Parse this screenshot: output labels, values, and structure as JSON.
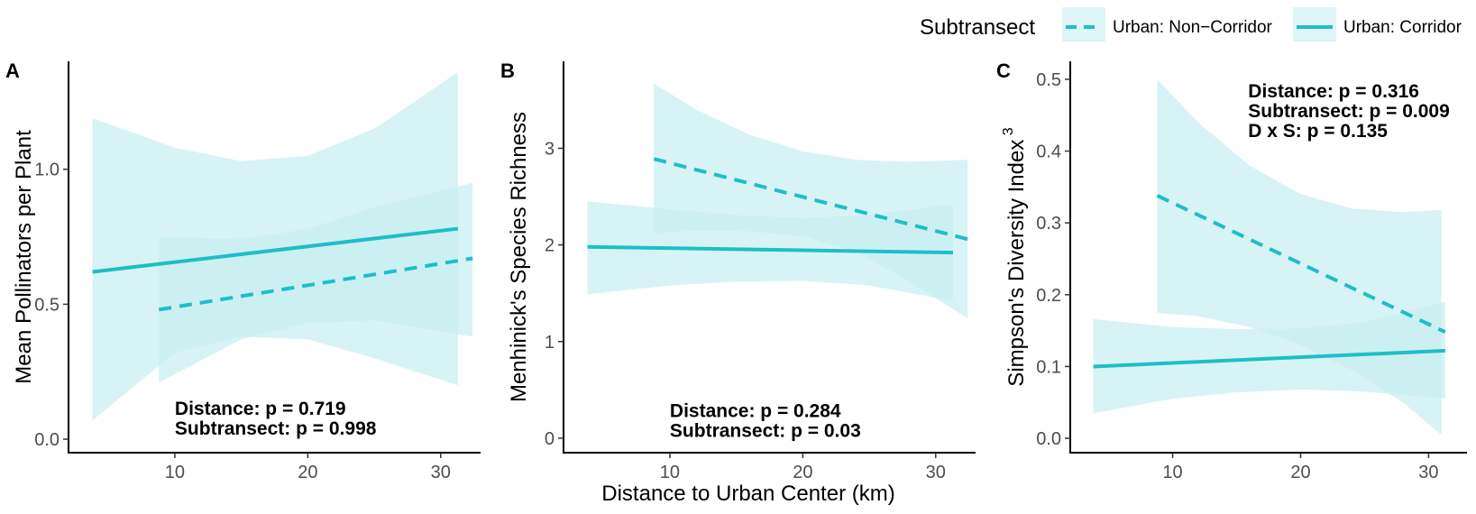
{
  "legend": {
    "title": "Subtransect",
    "items": [
      {
        "label": "Urban: Non−Corridor",
        "dash": true
      },
      {
        "label": "Urban: Corridor",
        "dash": false
      }
    ]
  },
  "colors": {
    "line": "#1ebec8",
    "ribbon": "#c8eef1"
  },
  "shared_xlabel": "Distance to Urban Center (km)",
  "chart_data": [
    {
      "type": "line",
      "panel": "A",
      "xlabel": "",
      "ylabel": "Mean Pollinators per Plant",
      "xlim": [
        2,
        33
      ],
      "ylim": [
        -0.05,
        1.4
      ],
      "xticks": [
        10,
        20,
        30
      ],
      "yticks": [
        0.0,
        0.5,
        1.0
      ],
      "ytick_labels": [
        "0.0",
        "0.5",
        "1.0"
      ],
      "annotations": [
        "Distance: p = 0.719",
        "Subtransect: p = 0.998"
      ],
      "annotation_anchor": [
        10.0,
        0.09
      ],
      "series": [
        {
          "name": "Urban: Corridor",
          "dash": false,
          "x": [
            3.8,
            31.3
          ],
          "y": [
            0.62,
            0.78
          ],
          "ribbon": [
            {
              "x": 3.8,
              "lo": 0.07,
              "hi": 1.19
            },
            {
              "x": 10,
              "lo": 0.32,
              "hi": 1.08
            },
            {
              "x": 15,
              "lo": 0.38,
              "hi": 1.03
            },
            {
              "x": 20,
              "lo": 0.37,
              "hi": 1.05
            },
            {
              "x": 25,
              "lo": 0.3,
              "hi": 1.15
            },
            {
              "x": 31.3,
              "lo": 0.2,
              "hi": 1.36
            }
          ]
        },
        {
          "name": "Urban: Non−Corridor",
          "dash": true,
          "x": [
            8.8,
            32.4
          ],
          "y": [
            0.48,
            0.67
          ],
          "ribbon": [
            {
              "x": 8.8,
              "lo": 0.21,
              "hi": 0.75
            },
            {
              "x": 15,
              "lo": 0.37,
              "hi": 0.74
            },
            {
              "x": 20,
              "lo": 0.43,
              "hi": 0.78
            },
            {
              "x": 25,
              "lo": 0.44,
              "hi": 0.86
            },
            {
              "x": 32.4,
              "lo": 0.38,
              "hi": 0.95
            }
          ]
        }
      ]
    },
    {
      "type": "line",
      "panel": "B",
      "xlabel": "",
      "ylabel": "Menhinick's Species Richness",
      "xlim": [
        2,
        33
      ],
      "ylim": [
        -0.15,
        3.9
      ],
      "xticks": [
        10,
        20,
        30
      ],
      "yticks": [
        0,
        1,
        2,
        3
      ],
      "ytick_labels": [
        "0",
        "1",
        "2",
        "3"
      ],
      "annotations": [
        "Distance: p = 0.284",
        "Subtransect: p = 0.03"
      ],
      "annotation_anchor": [
        10.0,
        0.22
      ],
      "series": [
        {
          "name": "Urban: Corridor",
          "dash": false,
          "x": [
            3.8,
            31.3
          ],
          "y": [
            1.98,
            1.92
          ],
          "ribbon": [
            {
              "x": 3.8,
              "lo": 1.49,
              "hi": 2.45
            },
            {
              "x": 10,
              "lo": 1.58,
              "hi": 2.37
            },
            {
              "x": 15,
              "lo": 1.62,
              "hi": 2.31
            },
            {
              "x": 20,
              "lo": 1.63,
              "hi": 2.28
            },
            {
              "x": 25,
              "lo": 1.58,
              "hi": 2.31
            },
            {
              "x": 31.3,
              "lo": 1.42,
              "hi": 2.42
            }
          ]
        },
        {
          "name": "Urban: Non−Corridor",
          "dash": true,
          "x": [
            8.8,
            32.4
          ],
          "y": [
            2.89,
            2.06
          ],
          "ribbon": [
            {
              "x": 8.8,
              "lo": 2.12,
              "hi": 3.67
            },
            {
              "x": 12,
              "lo": 2.15,
              "hi": 3.4
            },
            {
              "x": 16,
              "lo": 2.14,
              "hi": 3.14
            },
            {
              "x": 20,
              "lo": 2.09,
              "hi": 2.97
            },
            {
              "x": 24,
              "lo": 1.93,
              "hi": 2.88
            },
            {
              "x": 28,
              "lo": 1.62,
              "hi": 2.86
            },
            {
              "x": 32.4,
              "lo": 1.24,
              "hi": 2.88
            }
          ]
        }
      ]
    },
    {
      "type": "line",
      "panel": "C",
      "xlabel": "",
      "ylabel": "Simpson's Diversity Index",
      "ylabel_superscript": "3",
      "xlim": [
        2,
        33
      ],
      "ylim": [
        -0.02,
        0.525
      ],
      "xticks": [
        10,
        20,
        30
      ],
      "yticks": [
        0.0,
        0.1,
        0.2,
        0.3,
        0.4,
        0.5
      ],
      "ytick_labels": [
        "0.0",
        "0.1",
        "0.2",
        "0.3",
        "0.4",
        "0.5"
      ],
      "annotations": [
        "Distance: p = 0.316",
        "Subtransect: p = 0.009",
        "D x S: p = 0.135"
      ],
      "annotation_anchor": [
        15.9,
        0.475
      ],
      "series": [
        {
          "name": "Urban: Corridor",
          "dash": false,
          "x": [
            3.8,
            31.3
          ],
          "y": [
            0.1,
            0.122
          ],
          "ribbon": [
            {
              "x": 3.8,
              "lo": 0.035,
              "hi": 0.166
            },
            {
              "x": 10,
              "lo": 0.055,
              "hi": 0.155
            },
            {
              "x": 15,
              "lo": 0.064,
              "hi": 0.152
            },
            {
              "x": 20,
              "lo": 0.068,
              "hi": 0.153
            },
            {
              "x": 25,
              "lo": 0.065,
              "hi": 0.162
            },
            {
              "x": 31.3,
              "lo": 0.055,
              "hi": 0.19
            }
          ]
        },
        {
          "name": "Urban: Non−Corridor",
          "dash": true,
          "x": [
            8.8,
            31.3
          ],
          "y": [
            0.338,
            0.148
          ],
          "ribbon": [
            {
              "x": 8.8,
              "lo": 0.175,
              "hi": 0.5
            },
            {
              "x": 12,
              "lo": 0.17,
              "hi": 0.44
            },
            {
              "x": 16,
              "lo": 0.155,
              "hi": 0.38
            },
            {
              "x": 20,
              "lo": 0.13,
              "hi": 0.34
            },
            {
              "x": 24,
              "lo": 0.095,
              "hi": 0.32
            },
            {
              "x": 28,
              "lo": 0.05,
              "hi": 0.315
            },
            {
              "x": 31,
              "lo": 0.005,
              "hi": 0.318
            }
          ]
        }
      ]
    }
  ]
}
